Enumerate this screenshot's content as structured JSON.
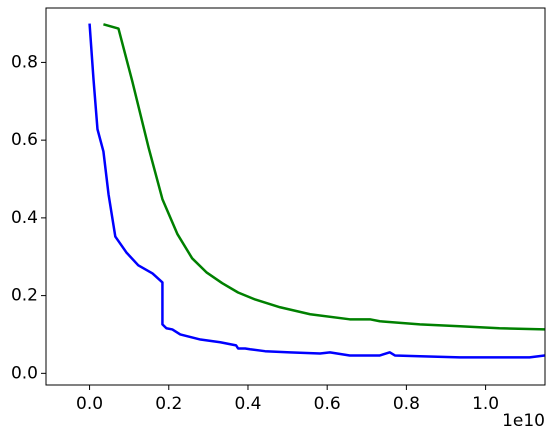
{
  "chart_data": {
    "type": "line",
    "x_offset_text": "1e10",
    "xlim": [
      -0.11,
      1.15
    ],
    "xticks": [
      {
        "value": 0,
        "label": "0.0"
      },
      0.2,
      0.4,
      0.6,
      0.8,
      {
        "value": 1,
        "label": "1.0"
      }
    ],
    "ylim": [
      -0.03,
      0.94
    ],
    "yticks": [
      {
        "value": 0,
        "label": "0.0"
      },
      0.2,
      0.4,
      0.6,
      0.8
    ],
    "grid": false,
    "series": [
      {
        "color": "#0000ff",
        "x": [
          0,
          0.01,
          0.02,
          0.035,
          0.048,
          0.065,
          0.093,
          0.123,
          0.159,
          0.184,
          0.184,
          0.194,
          0.209,
          0.229,
          0.28,
          0.33,
          0.37,
          0.375,
          0.393,
          0.405,
          0.443,
          0.506,
          0.582,
          0.607,
          0.657,
          0.733,
          0.758,
          0.771,
          0.834,
          0.935,
          1.035,
          1.111,
          1.149
        ],
        "values": [
          0.9,
          0.756,
          0.628,
          0.571,
          0.46,
          0.352,
          0.311,
          0.278,
          0.257,
          0.234,
          0.126,
          0.116,
          0.113,
          0.1,
          0.087,
          0.08,
          0.072,
          0.064,
          0.064,
          0.062,
          0.057,
          0.054,
          0.051,
          0.054,
          0.046,
          0.046,
          0.054,
          0.046,
          0.044,
          0.041,
          0.041,
          0.041,
          0.046
        ]
      },
      {
        "color": "#008000",
        "x": [
          0.035,
          0.073,
          0.108,
          0.149,
          0.184,
          0.222,
          0.259,
          0.295,
          0.335,
          0.375,
          0.418,
          0.481,
          0.557,
          0.657,
          0.708,
          0.733,
          0.834,
          0.935,
          1.035,
          1.149
        ],
        "values": [
          0.898,
          0.887,
          0.751,
          0.581,
          0.448,
          0.358,
          0.296,
          0.26,
          0.232,
          0.208,
          0.19,
          0.17,
          0.152,
          0.139,
          0.139,
          0.134,
          0.126,
          0.121,
          0.116,
          0.113
        ]
      }
    ]
  }
}
